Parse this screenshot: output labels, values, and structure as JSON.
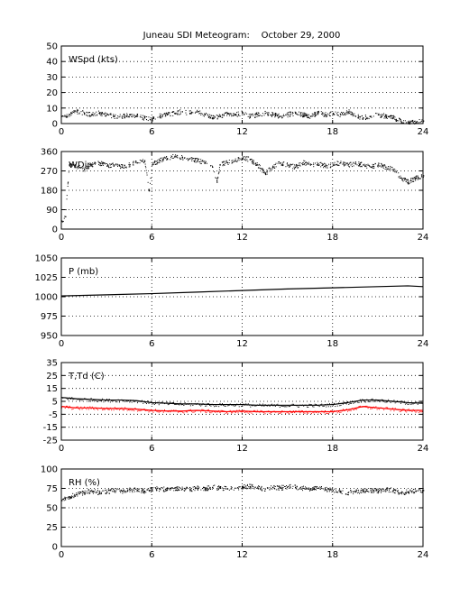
{
  "title": "Juneau SDI Meteogram:    October 29, 2000",
  "chart_data": [
    {
      "type": "scatter",
      "label": "WSpd (kts)",
      "xlim": [
        0,
        24
      ],
      "ylim": [
        0,
        50
      ],
      "xticks": [
        0,
        6,
        12,
        18,
        24
      ],
      "yticks": [
        0,
        10,
        20,
        30,
        40,
        50
      ],
      "grid": true,
      "series": [
        {
          "color": "#000000",
          "x": [
            0,
            0.5,
            1,
            1.5,
            2,
            2.5,
            3,
            3.5,
            4,
            4.5,
            5,
            5.5,
            6,
            6.5,
            7,
            7.5,
            8,
            8.5,
            9,
            9.5,
            10,
            10.5,
            11,
            11.5,
            12,
            12.5,
            13,
            13.5,
            14,
            14.5,
            15,
            15.5,
            16,
            16.5,
            17,
            17.5,
            18,
            18.5,
            19,
            19.5,
            20,
            20.5,
            21,
            21.5,
            22,
            22.5,
            23,
            23.5,
            24
          ],
          "values": [
            5,
            6,
            8,
            7,
            6,
            7,
            6,
            5,
            5,
            6,
            5,
            4,
            3,
            5,
            6,
            7,
            8,
            7,
            8,
            6,
            4,
            5,
            7,
            6,
            7,
            5,
            6,
            7,
            6,
            5,
            6,
            7,
            6,
            5,
            7,
            6,
            7,
            6,
            8,
            5,
            4,
            5,
            6,
            5,
            4,
            2,
            1,
            1,
            2
          ]
        }
      ]
    },
    {
      "type": "scatter",
      "label": "WDir",
      "xlim": [
        0,
        24
      ],
      "ylim": [
        0,
        360
      ],
      "xticks": [
        0,
        6,
        12,
        18,
        24
      ],
      "yticks": [
        0,
        90,
        180,
        270,
        360
      ],
      "grid": true,
      "series": [
        {
          "color": "#000000",
          "x": [
            0,
            0.25,
            0.5,
            1,
            1.5,
            2,
            2.5,
            3,
            3.5,
            4,
            4.5,
            5,
            5.5,
            5.8,
            6,
            6.5,
            7,
            7.5,
            8,
            8.5,
            9,
            9.5,
            10,
            10.3,
            10.5,
            11,
            11.5,
            12,
            12.5,
            13,
            13.5,
            14,
            14.5,
            15,
            15.5,
            16,
            16.5,
            17,
            17.5,
            18,
            18.5,
            19,
            19.5,
            20,
            20.5,
            21,
            21.5,
            22,
            22.5,
            23,
            23.5,
            24
          ],
          "values": [
            40,
            60,
            300,
            290,
            280,
            300,
            310,
            295,
            300,
            290,
            300,
            310,
            320,
            180,
            300,
            320,
            330,
            340,
            335,
            330,
            320,
            310,
            290,
            220,
            300,
            310,
            320,
            330,
            325,
            300,
            260,
            290,
            310,
            300,
            290,
            310,
            300,
            305,
            295,
            300,
            310,
            300,
            305,
            300,
            290,
            300,
            290,
            280,
            240,
            220,
            240,
            250
          ]
        }
      ]
    },
    {
      "type": "line",
      "label": "P (mb)",
      "xlim": [
        0,
        24
      ],
      "ylim": [
        950,
        1050
      ],
      "xticks": [
        0,
        6,
        12,
        18,
        24
      ],
      "yticks": [
        950,
        975,
        1000,
        1025,
        1050
      ],
      "grid": true,
      "series": [
        {
          "color": "#000000",
          "x": [
            0,
            3,
            6,
            9,
            12,
            15,
            18,
            21,
            23,
            24
          ],
          "values": [
            1001,
            1002.5,
            1004,
            1006,
            1008,
            1010,
            1011.5,
            1013,
            1014,
            1013
          ]
        }
      ]
    },
    {
      "type": "line",
      "label": "T,Td (C)",
      "xlim": [
        0,
        24
      ],
      "ylim": [
        -25,
        35
      ],
      "xticks": [
        0,
        6,
        12,
        18,
        24
      ],
      "yticks": [
        -25,
        -15,
        -5,
        5,
        15,
        25,
        35
      ],
      "grid": true,
      "series": [
        {
          "color": "#000000",
          "x": [
            0,
            1,
            2,
            3,
            4,
            5,
            6,
            7,
            8,
            9,
            10,
            11,
            12,
            13,
            14,
            15,
            16,
            17,
            18,
            19,
            20,
            21,
            22,
            23,
            24
          ],
          "values": [
            8,
            7,
            6.5,
            6,
            6,
            5.5,
            4,
            3.5,
            3,
            3,
            2.5,
            2.5,
            2.5,
            2,
            2,
            2,
            2,
            2,
            2.5,
            4,
            6,
            6,
            5,
            4,
            3.5
          ]
        },
        {
          "color": "#ff0000",
          "x": [
            0,
            1,
            2,
            3,
            4,
            5,
            6,
            7,
            8,
            9,
            10,
            11,
            12,
            13,
            14,
            15,
            16,
            17,
            18,
            19,
            20,
            21,
            22,
            23,
            24
          ],
          "values": [
            1,
            0,
            0,
            -0.5,
            -0.5,
            -1,
            -2,
            -2.5,
            -2.5,
            -2,
            -2.5,
            -3,
            -2.5,
            -3,
            -3,
            -3,
            -3,
            -3,
            -3,
            -1.5,
            1,
            0,
            -1,
            -2,
            -2
          ]
        }
      ]
    },
    {
      "type": "scatter",
      "label": "RH (%)",
      "xlim": [
        0,
        24
      ],
      "ylim": [
        0,
        100
      ],
      "xticks": [
        0,
        6,
        12,
        18,
        24
      ],
      "yticks": [
        0,
        25,
        50,
        75,
        100
      ],
      "grid": true,
      "series": [
        {
          "color": "#000000",
          "x": [
            0,
            0.5,
            1,
            1.5,
            2,
            2.5,
            3,
            3.5,
            4,
            4.5,
            5,
            5.5,
            6,
            6.5,
            7,
            7.5,
            8,
            8.5,
            9,
            9.5,
            10,
            10.5,
            11,
            11.5,
            12,
            12.5,
            13,
            13.5,
            14,
            14.5,
            15,
            15.5,
            16,
            16.5,
            17,
            17.5,
            18,
            18.5,
            19,
            19.5,
            20,
            20.5,
            21,
            21.5,
            22,
            22.5,
            23,
            23.5,
            24
          ],
          "values": [
            60,
            65,
            68,
            70,
            72,
            70,
            71,
            73,
            72,
            74,
            73,
            72,
            74,
            75,
            74,
            76,
            75,
            74,
            76,
            75,
            77,
            76,
            75,
            76,
            77,
            78,
            76,
            75,
            77,
            76,
            78,
            77,
            76,
            75,
            76,
            74,
            73,
            72,
            70,
            71,
            72,
            73,
            72,
            74,
            73,
            70,
            71,
            72,
            73
          ]
        }
      ]
    }
  ]
}
